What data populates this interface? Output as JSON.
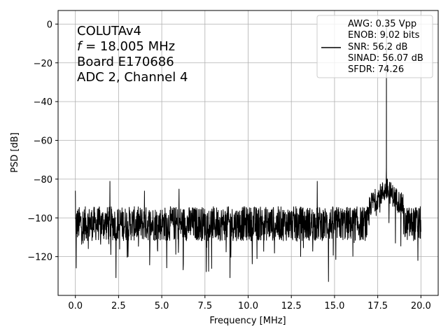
{
  "chart_data": {
    "type": "line",
    "title": "",
    "xlabel": "Frequency [MHz]",
    "ylabel": "PSD [dB]",
    "xlim": [
      -1,
      21
    ],
    "ylim": [
      -140,
      7
    ],
    "grid": true,
    "x_ticks": [
      0.0,
      2.5,
      5.0,
      7.5,
      10.0,
      12.5,
      15.0,
      17.5,
      20.0
    ],
    "x_tick_labels": [
      "0.0",
      "2.5",
      "5.0",
      "7.5",
      "10.0",
      "12.5",
      "15.0",
      "17.5",
      "20.0"
    ],
    "y_ticks": [
      0,
      -20,
      -40,
      -60,
      -80,
      -100,
      -120
    ],
    "y_tick_labels": [
      "0",
      "−20",
      "−40",
      "−60",
      "−80",
      "−100",
      "−120"
    ],
    "annotation": {
      "line1": "COLUTAv4",
      "line2_var": "f",
      "line2_rest": " = 18.005 MHz",
      "line3": "Board E170686",
      "line4": "ADC 2, Channel 4"
    },
    "legend": {
      "placement": "top-right",
      "lines": [
        "AWG: 0.35 Vpp",
        "ENOB: 9.02 bits",
        "SNR: 56.2 dB",
        "SINAD: 56.07 dB",
        "SFDR: 74.26"
      ]
    },
    "series": [
      {
        "color": "#000000",
        "description_points": {
          "noise_floor_db": -103,
          "noise_spread_db": 9,
          "fundamental": {
            "x": 18.005,
            "y": 0
          },
          "spurs": [
            {
              "x": 0.0,
              "y": -86
            },
            {
              "x": 2.0,
              "y": -81
            },
            {
              "x": 4.0,
              "y": -86
            },
            {
              "x": 6.0,
              "y": -85
            },
            {
              "x": 14.0,
              "y": -81
            },
            {
              "x": 18.0,
              "y": -74
            }
          ],
          "minima": [
            {
              "x": 0.05,
              "y": -126
            },
            {
              "x": 2.35,
              "y": -131
            },
            {
              "x": 8.95,
              "y": -131
            },
            {
              "x": 14.65,
              "y": -133
            }
          ]
        }
      }
    ]
  }
}
